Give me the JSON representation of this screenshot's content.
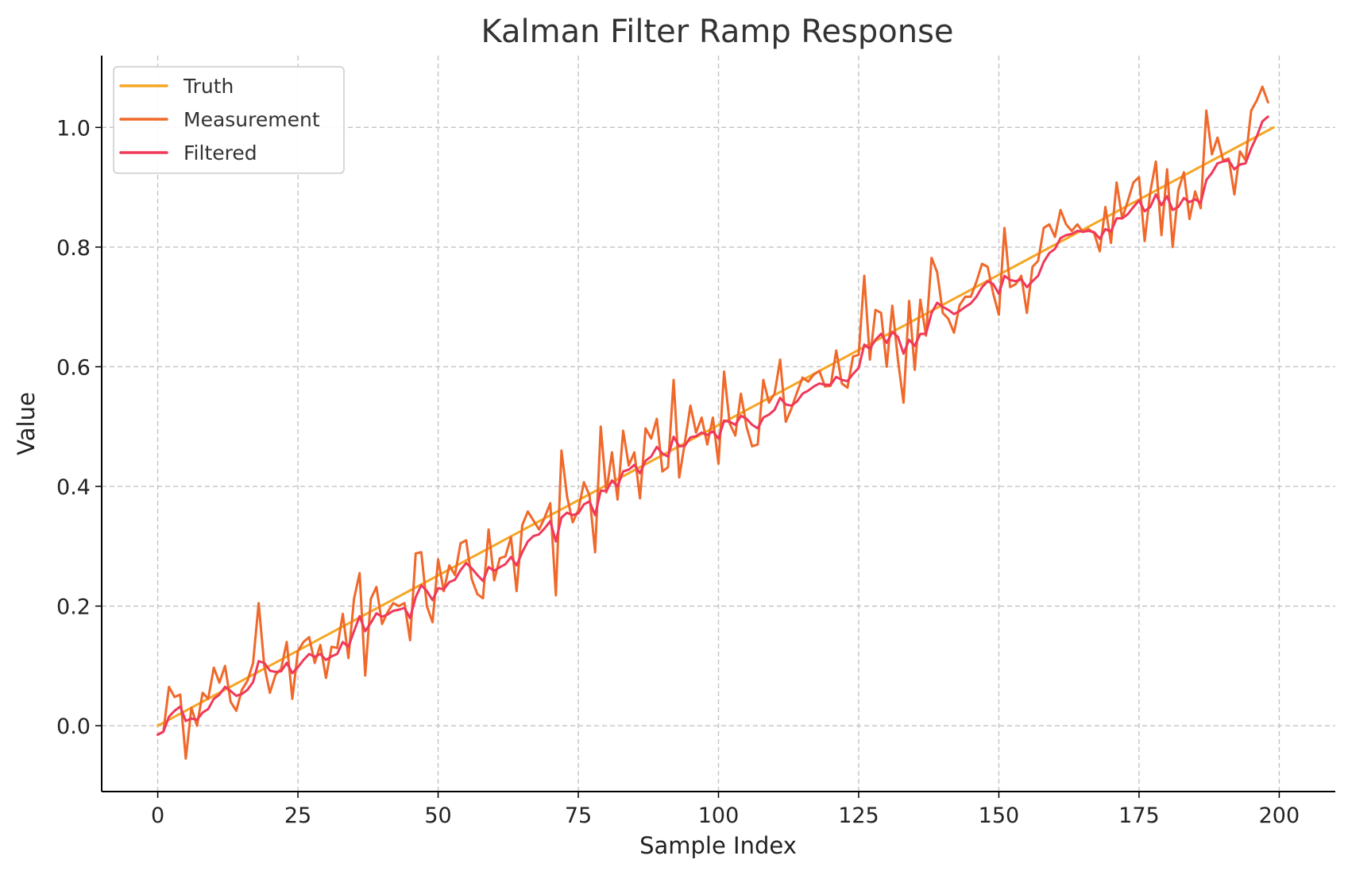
{
  "chart_data": {
    "type": "line",
    "title": "Kalman Filter Ramp Response",
    "xlabel": "Sample Index",
    "ylabel": "Value",
    "xlim": [
      -10,
      210
    ],
    "ylim": [
      -0.11,
      1.12
    ],
    "x_ticks": [
      0,
      25,
      50,
      75,
      100,
      125,
      150,
      175,
      200
    ],
    "x_tick_labels": [
      "0",
      "25",
      "50",
      "75",
      "100",
      "125",
      "150",
      "175",
      "200"
    ],
    "y_ticks": [
      0.0,
      0.2,
      0.4,
      0.6,
      0.8,
      1.0
    ],
    "y_tick_labels": [
      "0.0",
      "0.2",
      "0.4",
      "0.6",
      "0.8",
      "1.0"
    ],
    "grid": true,
    "legend_position": "top-left",
    "series": [
      {
        "name": "Truth",
        "color": "#f5a623",
        "x": [
          0,
          199
        ],
        "values": [
          0.0,
          1.0
        ]
      },
      {
        "name": "Measurement",
        "color": "#f0682a",
        "x_start": 0,
        "values": [
          -0.015,
          -0.01,
          0.065,
          0.048,
          0.052,
          -0.055,
          0.03,
          0.0,
          0.055,
          0.045,
          0.097,
          0.072,
          0.1,
          0.04,
          0.025,
          0.06,
          0.075,
          0.105,
          0.205,
          0.1,
          0.055,
          0.085,
          0.095,
          0.14,
          0.045,
          0.125,
          0.14,
          0.148,
          0.105,
          0.135,
          0.08,
          0.132,
          0.13,
          0.187,
          0.113,
          0.212,
          0.255,
          0.084,
          0.212,
          0.232,
          0.17,
          0.19,
          0.205,
          0.2,
          0.205,
          0.143,
          0.288,
          0.29,
          0.2,
          0.173,
          0.278,
          0.225,
          0.268,
          0.252,
          0.305,
          0.31,
          0.245,
          0.22,
          0.213,
          0.328,
          0.243,
          0.28,
          0.283,
          0.315,
          0.225,
          0.335,
          0.358,
          0.343,
          0.328,
          0.348,
          0.372,
          0.218,
          0.46,
          0.383,
          0.34,
          0.36,
          0.407,
          0.385,
          0.29,
          0.5,
          0.39,
          0.457,
          0.378,
          0.493,
          0.435,
          0.457,
          0.38,
          0.497,
          0.48,
          0.513,
          0.425,
          0.432,
          0.578,
          0.415,
          0.473,
          0.535,
          0.49,
          0.515,
          0.47,
          0.515,
          0.438,
          0.592,
          0.505,
          0.485,
          0.555,
          0.5,
          0.467,
          0.47,
          0.578,
          0.54,
          0.555,
          0.612,
          0.508,
          0.53,
          0.557,
          0.582,
          0.575,
          0.587,
          0.593,
          0.567,
          0.568,
          0.627,
          0.572,
          0.565,
          0.617,
          0.62,
          0.752,
          0.612,
          0.695,
          0.69,
          0.6,
          0.702,
          0.612,
          0.54,
          0.71,
          0.595,
          0.712,
          0.652,
          0.782,
          0.758,
          0.69,
          0.68,
          0.657,
          0.703,
          0.717,
          0.717,
          0.742,
          0.772,
          0.767,
          0.722,
          0.687,
          0.832,
          0.733,
          0.738,
          0.752,
          0.69,
          0.767,
          0.777,
          0.832,
          0.838,
          0.817,
          0.862,
          0.838,
          0.827,
          0.838,
          0.825,
          0.83,
          0.823,
          0.793,
          0.867,
          0.807,
          0.908,
          0.848,
          0.877,
          0.908,
          0.917,
          0.81,
          0.892,
          0.943,
          0.82,
          0.93,
          0.8,
          0.895,
          0.925,
          0.847,
          0.893,
          0.865,
          1.028,
          0.955,
          0.983,
          0.945,
          0.948,
          0.888,
          0.96,
          0.945,
          1.028,
          1.045,
          1.068,
          1.042
        ]
      },
      {
        "name": "Filtered",
        "color": "#f0385a",
        "x_start": 0,
        "values": [
          -0.015,
          -0.01,
          0.015,
          0.025,
          0.032,
          0.008,
          0.012,
          0.01,
          0.022,
          0.028,
          0.045,
          0.052,
          0.065,
          0.058,
          0.05,
          0.053,
          0.06,
          0.073,
          0.108,
          0.105,
          0.092,
          0.09,
          0.091,
          0.105,
          0.088,
          0.098,
          0.11,
          0.12,
          0.115,
          0.12,
          0.11,
          0.116,
          0.12,
          0.14,
          0.132,
          0.158,
          0.183,
          0.158,
          0.172,
          0.188,
          0.182,
          0.186,
          0.192,
          0.194,
          0.197,
          0.18,
          0.215,
          0.235,
          0.225,
          0.21,
          0.23,
          0.228,
          0.24,
          0.244,
          0.26,
          0.272,
          0.263,
          0.252,
          0.242,
          0.265,
          0.259,
          0.265,
          0.27,
          0.282,
          0.268,
          0.29,
          0.308,
          0.317,
          0.32,
          0.33,
          0.342,
          0.308,
          0.348,
          0.356,
          0.352,
          0.355,
          0.37,
          0.375,
          0.352,
          0.393,
          0.392,
          0.41,
          0.4,
          0.425,
          0.428,
          0.436,
          0.422,
          0.443,
          0.45,
          0.466,
          0.455,
          0.45,
          0.483,
          0.467,
          0.468,
          0.482,
          0.484,
          0.49,
          0.486,
          0.492,
          0.48,
          0.51,
          0.508,
          0.503,
          0.518,
          0.513,
          0.503,
          0.497,
          0.515,
          0.52,
          0.528,
          0.548,
          0.537,
          0.535,
          0.542,
          0.555,
          0.56,
          0.567,
          0.572,
          0.57,
          0.57,
          0.583,
          0.578,
          0.576,
          0.588,
          0.598,
          0.637,
          0.63,
          0.645,
          0.655,
          0.64,
          0.658,
          0.65,
          0.622,
          0.645,
          0.635,
          0.655,
          0.655,
          0.69,
          0.707,
          0.7,
          0.695,
          0.688,
          0.693,
          0.7,
          0.706,
          0.717,
          0.733,
          0.743,
          0.738,
          0.722,
          0.752,
          0.745,
          0.743,
          0.746,
          0.733,
          0.743,
          0.752,
          0.775,
          0.79,
          0.797,
          0.815,
          0.82,
          0.822,
          0.827,
          0.826,
          0.827,
          0.825,
          0.814,
          0.83,
          0.826,
          0.848,
          0.848,
          0.855,
          0.867,
          0.878,
          0.86,
          0.867,
          0.888,
          0.87,
          0.885,
          0.862,
          0.867,
          0.882,
          0.875,
          0.88,
          0.874,
          0.912,
          0.924,
          0.94,
          0.943,
          0.945,
          0.93,
          0.938,
          0.94,
          0.965,
          0.985,
          1.01,
          1.018
        ]
      }
    ]
  }
}
